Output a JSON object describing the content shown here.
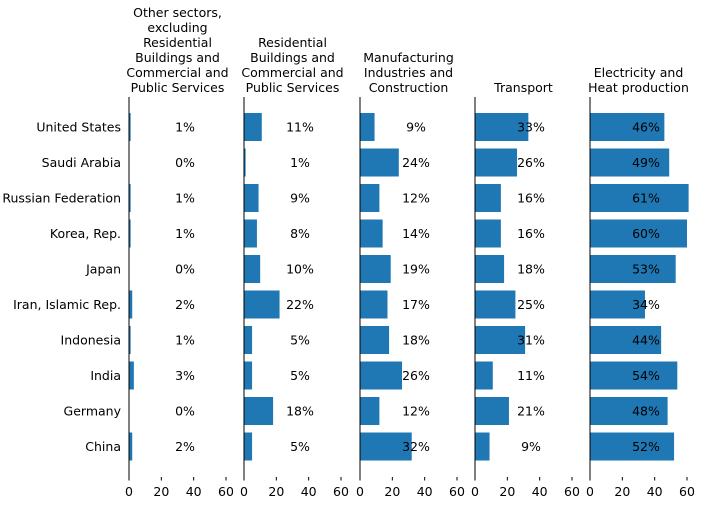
{
  "chart_data": {
    "type": "bar",
    "orientation": "horizontal",
    "categories": [
      "United States",
      "Saudi Arabia",
      "Russian Federation",
      "Korea, Rep.",
      "Japan",
      "Iran, Islamic Rep.",
      "Indonesia",
      "India",
      "Germany",
      "China"
    ],
    "xlim": [
      0,
      60
    ],
    "xticks": [
      0,
      20,
      40,
      60
    ],
    "tick_labels": [
      "0",
      "20",
      "40",
      "60"
    ],
    "bar_color": "#1f77b4",
    "value_suffix": "%",
    "panels": [
      {
        "title": "Other sectors,\nexcluding\nResidential\nBuildings and\nCommercial and\nPublic Services",
        "values": [
          1,
          0,
          1,
          1,
          0,
          2,
          1,
          3,
          0,
          2
        ]
      },
      {
        "title": "Residential\nBuildings and\nCommercial and\nPublic Services",
        "values": [
          11,
          1,
          9,
          8,
          10,
          22,
          5,
          5,
          18,
          5
        ]
      },
      {
        "title": "Manufacturing\nIndustries and\nConstruction",
        "values": [
          9,
          24,
          12,
          14,
          19,
          17,
          18,
          26,
          12,
          32
        ]
      },
      {
        "title": "Transport",
        "values": [
          33,
          26,
          16,
          16,
          18,
          25,
          31,
          11,
          21,
          9
        ]
      },
      {
        "title": "Electricity and\nHeat production",
        "values": [
          46,
          49,
          61,
          60,
          53,
          34,
          44,
          54,
          48,
          52
        ]
      }
    ]
  }
}
